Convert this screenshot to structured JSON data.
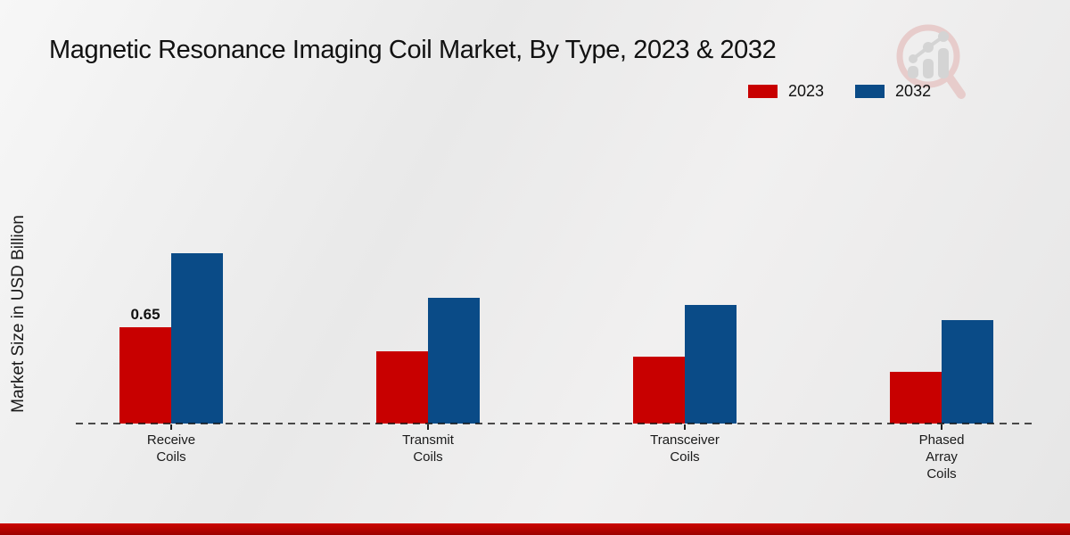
{
  "title": "Magnetic Resonance Imaging Coil Market, By Type, 2023 & 2032",
  "legend": {
    "items": [
      {
        "label": "2023",
        "color": "#c80000"
      },
      {
        "label": "2032",
        "color": "#0a4b87"
      }
    ]
  },
  "watermark": {
    "icon": "magnifier-bar-chart-logo"
  },
  "chart_data": {
    "type": "bar",
    "title": "Magnetic Resonance Imaging Coil Market, By Type, 2023 & 2032",
    "xlabel": "",
    "ylabel": "Market Size in USD Billion",
    "categories": [
      "Receive Coils",
      "Transmit Coils",
      "Transceiver Coils",
      "Phased Array Coils"
    ],
    "category_lines": [
      [
        "Receive",
        "Coils"
      ],
      [
        "Transmit",
        "Coils"
      ],
      [
        "Transceiver",
        "Coils"
      ],
      [
        "Phased",
        "Array",
        "Coils"
      ]
    ],
    "series": [
      {
        "name": "2023",
        "color": "#c80000",
        "values": [
          0.65,
          0.49,
          0.45,
          0.35
        ]
      },
      {
        "name": "2032",
        "color": "#0a4b87",
        "values": [
          1.15,
          0.85,
          0.8,
          0.7
        ]
      }
    ],
    "annotations": [
      {
        "series_index": 0,
        "category_index": 0,
        "text": "0.65"
      }
    ],
    "ylim": [
      0,
      1.25
    ],
    "grid": false,
    "baseline_style": "dashed",
    "legend_position": "top-right",
    "unit": "USD Billion"
  }
}
